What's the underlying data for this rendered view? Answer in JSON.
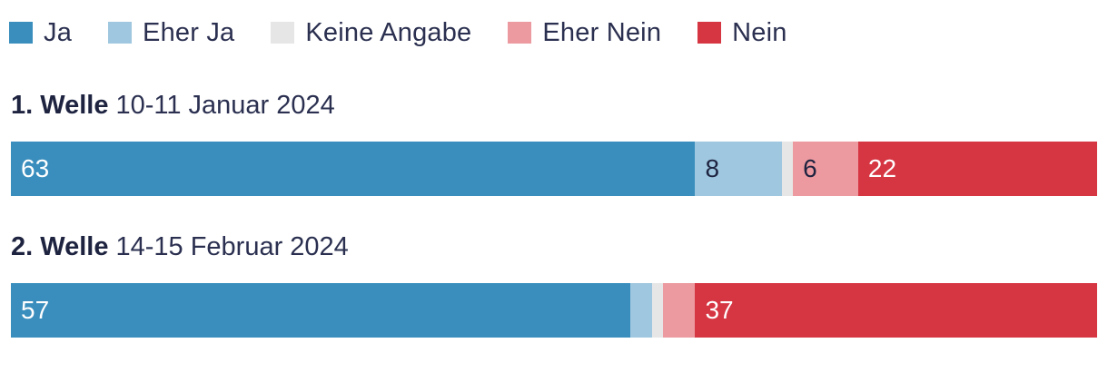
{
  "chart_data": {
    "type": "bar",
    "orientation": "horizontal",
    "stacked": true,
    "categories": [
      "Ja",
      "Eher Ja",
      "Keine Angabe",
      "Eher Nein",
      "Nein"
    ],
    "colors": [
      "#3a8ebd",
      "#9fc7df",
      "#e6e6e6",
      "#ec9aa0",
      "#d63542"
    ],
    "label_colors": [
      "#ffffff",
      "#1e2340",
      "#1e2340",
      "#1e2340",
      "#ffffff"
    ],
    "rows": [
      {
        "title": "1. Welle",
        "date": "10-11 Januar 2024",
        "values": [
          63,
          8,
          1,
          6,
          22
        ],
        "labels": [
          "63",
          "8",
          "",
          "6",
          "22"
        ]
      },
      {
        "title": "2. Welle",
        "date": "14-15 Februar 2024",
        "values": [
          57,
          2,
          1,
          3,
          37
        ],
        "labels": [
          "57",
          "",
          "",
          "",
          "37"
        ]
      }
    ]
  }
}
